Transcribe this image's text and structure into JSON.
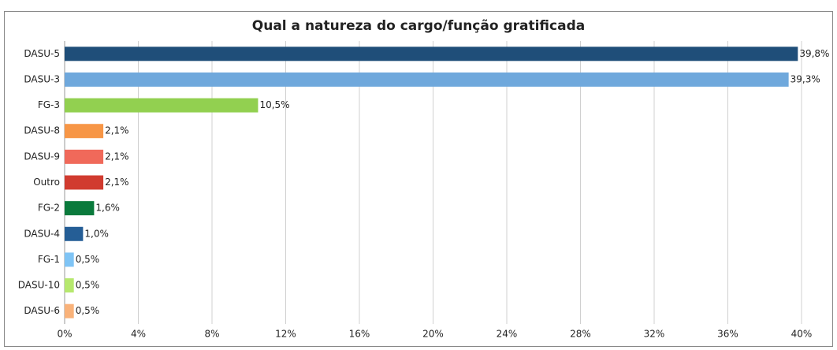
{
  "chart_data": {
    "type": "hbar",
    "title": "Qual a natureza do cargo/função gratificada",
    "categories": [
      "DASU-5",
      "DASU-3",
      "FG-3",
      "DASU-8",
      "DASU-9",
      "Outro",
      "FG-2",
      "DASU-4",
      "FG-1",
      "DASU-10",
      "DASU-6"
    ],
    "values": [
      39.8,
      39.3,
      10.5,
      2.1,
      2.1,
      2.1,
      1.6,
      1.0,
      0.5,
      0.5,
      0.5
    ],
    "value_labels": [
      "39,8%",
      "39,3%",
      "10,5%",
      "2,1%",
      "2,1%",
      "2,1%",
      "1,6%",
      "1,0%",
      "0,5%",
      "0,5%",
      "0,5%"
    ],
    "colors": [
      "#1f4e79",
      "#6fa8dc",
      "#92d050",
      "#f79646",
      "#f0695a",
      "#d13b2f",
      "#0a7a3c",
      "#255e96",
      "#7fc4f5",
      "#b6e86e",
      "#f9b27a"
    ],
    "xlim": [
      0,
      40
    ],
    "xticks": [
      {
        "value": 0,
        "label": "0%"
      },
      {
        "value": 4,
        "label": "4%"
      },
      {
        "value": 8,
        "label": "8%"
      },
      {
        "value": 12,
        "label": "12%"
      },
      {
        "value": 16,
        "label": "16%"
      },
      {
        "value": 20,
        "label": "20%"
      },
      {
        "value": 24,
        "label": "24%"
      },
      {
        "value": 28,
        "label": "28%"
      },
      {
        "value": 32,
        "label": "32%"
      },
      {
        "value": 36,
        "label": "36%"
      },
      {
        "value": 40,
        "label": "40%"
      }
    ],
    "grid": true
  }
}
